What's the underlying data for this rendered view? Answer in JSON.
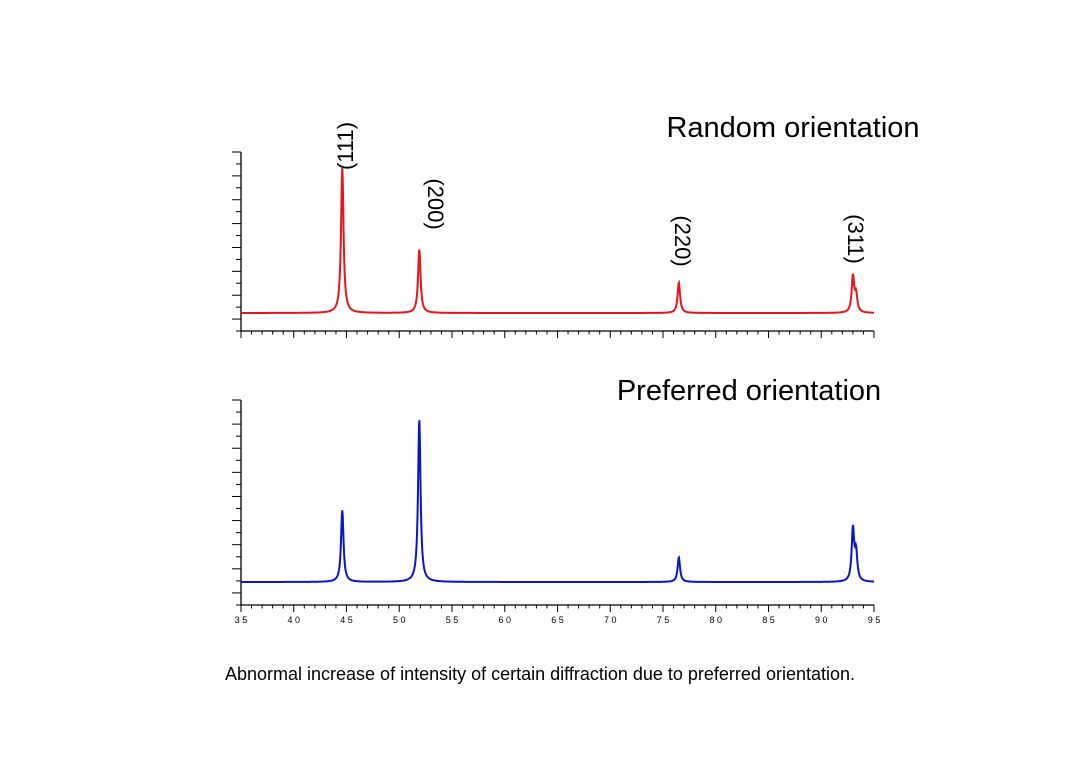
{
  "caption": "Abnormal increase of intensity of certain diffraction due to preferred orientation.",
  "chart_data": [
    {
      "type": "line",
      "title": "Random orientation",
      "color": "#e8141c",
      "xlim": [
        35,
        95
      ],
      "ylim": [
        0,
        100
      ],
      "peak_labels": [
        "(111)",
        "(200)",
        "(220)",
        "(311)"
      ],
      "peaks": [
        {
          "x": 44.6,
          "height": 100
        },
        {
          "x": 51.9,
          "height": 44
        },
        {
          "x": 76.5,
          "height": 21
        },
        {
          "x": 93.0,
          "height": 25
        },
        {
          "x": 93.3,
          "height": 12
        }
      ]
    },
    {
      "type": "line",
      "title": "Preferred orientation",
      "color": "#0b14c8",
      "xlim": [
        35,
        95
      ],
      "ylim": [
        0,
        100
      ],
      "xticks": [
        "3 5",
        "4 0",
        "4 5",
        "5 0",
        "5 5",
        "6 0",
        "6 5",
        "7 0",
        "7 5",
        "8 0",
        "8 5",
        "9 0",
        "9 5"
      ],
      "peaks": [
        {
          "x": 44.6,
          "height": 44
        },
        {
          "x": 51.9,
          "height": 100
        },
        {
          "x": 76.5,
          "height": 15
        },
        {
          "x": 93.0,
          "height": 32
        },
        {
          "x": 93.3,
          "height": 17
        }
      ]
    }
  ]
}
